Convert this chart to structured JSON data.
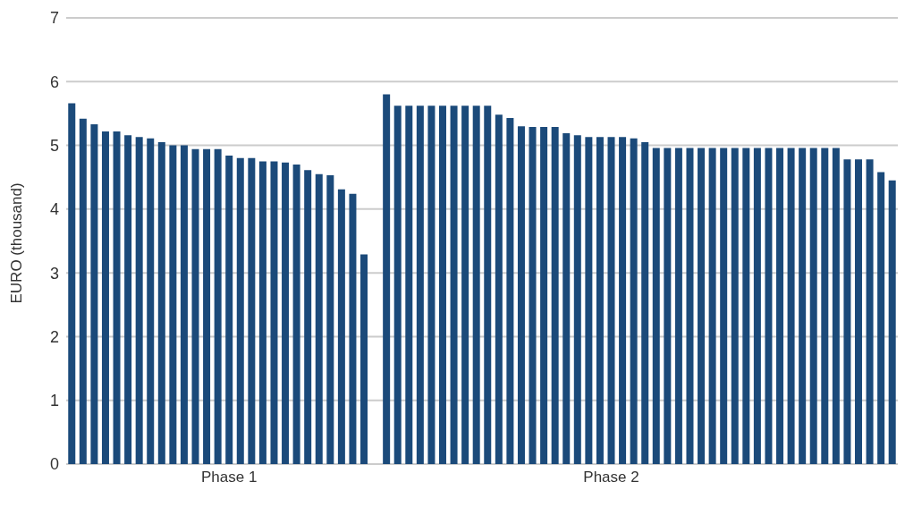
{
  "chart_data": {
    "type": "bar",
    "ylabel": "EURO (thousand)",
    "categories": [
      null,
      null,
      null,
      null,
      null,
      null,
      null,
      null,
      null,
      null,
      null,
      null,
      null,
      null,
      "Phase 1",
      null,
      null,
      null,
      null,
      null,
      null,
      null,
      null,
      null,
      null,
      null,
      null,
      null,
      null,
      null,
      null,
      null,
      null,
      null,
      null,
      null,
      null,
      null,
      null,
      null,
      null,
      null,
      null,
      null,
      null,
      null,
      null,
      null,
      "Phase 2",
      null,
      null,
      null,
      null,
      null,
      null,
      null,
      null,
      null,
      null,
      null,
      null,
      null,
      null,
      null,
      null,
      null,
      null,
      null,
      null,
      null,
      null,
      null,
      null,
      null
    ],
    "values": [
      5.66,
      5.42,
      5.33,
      5.22,
      5.22,
      5.16,
      5.13,
      5.11,
      5.05,
      5.0,
      5.0,
      4.94,
      4.94,
      4.94,
      4.84,
      4.8,
      4.8,
      4.75,
      4.75,
      4.73,
      4.7,
      4.61,
      4.55,
      4.53,
      4.31,
      4.24,
      3.29,
      null,
      5.8,
      5.62,
      5.62,
      5.62,
      5.62,
      5.62,
      5.62,
      5.62,
      5.62,
      5.62,
      5.48,
      5.43,
      5.3,
      5.29,
      5.29,
      5.29,
      5.19,
      5.16,
      5.13,
      5.13,
      5.13,
      5.13,
      5.11,
      5.05,
      4.96,
      4.96,
      4.96,
      4.96,
      4.96,
      4.96,
      4.96,
      4.96,
      4.96,
      4.96,
      4.96,
      4.96,
      4.96,
      4.96,
      4.96,
      4.96,
      4.96,
      4.78,
      4.78,
      4.78,
      4.58,
      4.45
    ],
    "color": "#1b4a7a",
    "ylim": [
      0,
      7
    ],
    "yticks": [
      0,
      1,
      2,
      3,
      4,
      5,
      6,
      7
    ],
    "grid": "y"
  }
}
